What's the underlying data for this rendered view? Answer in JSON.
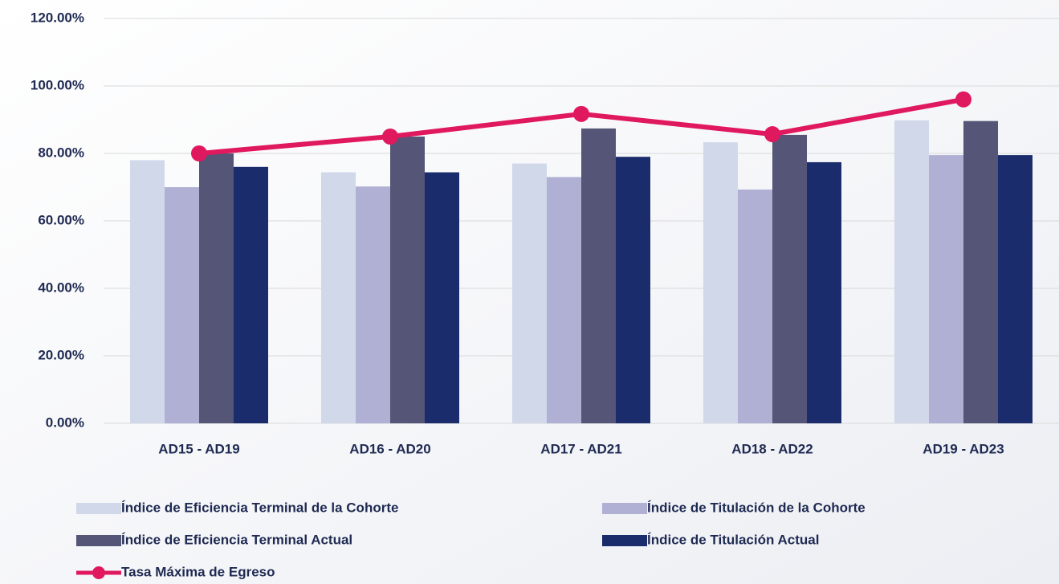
{
  "chart_data": {
    "type": "bar",
    "categories": [
      "AD15 - AD19",
      "AD16 - AD20",
      "AD17 - AD21",
      "AD18 - AD22",
      "AD19 - AD23"
    ],
    "series": [
      {
        "name": "Índice de Eficiencia Terminal de la Cohorte",
        "color": "#d0d8ea",
        "values": [
          78,
          74.4,
          77,
          83.3,
          89.8
        ]
      },
      {
        "name": "Índice de Titulación de la Cohorte",
        "color": "#b0b0d4",
        "values": [
          70,
          70.2,
          73,
          69.3,
          79.5
        ]
      },
      {
        "name": "Índice de Eficiencia Terminal Actual",
        "color": "#555577",
        "values": [
          80,
          85,
          87.4,
          85.5,
          89.6
        ]
      },
      {
        "name": "Índice de Titulación Actual",
        "color": "#1a2c6b",
        "values": [
          76,
          74.4,
          79,
          77.4,
          79.5
        ]
      },
      {
        "name": "Tasa Máxima de Egreso",
        "color": "#e0185e",
        "type": "line",
        "values": [
          80,
          85,
          91.7,
          85.7,
          96
        ]
      }
    ],
    "ylim": [
      0,
      120
    ],
    "yticks": [
      {
        "value": 0,
        "label": "0.00%"
      },
      {
        "value": 20,
        "label": "20.00%"
      },
      {
        "value": 40,
        "label": "40.00%"
      },
      {
        "value": 60,
        "label": "60.00%"
      },
      {
        "value": 80,
        "label": "80.00%"
      },
      {
        "value": 100,
        "label": "100.00%"
      },
      {
        "value": 120,
        "label": "120.00%"
      }
    ],
    "grid": true,
    "legend": "bottom"
  }
}
